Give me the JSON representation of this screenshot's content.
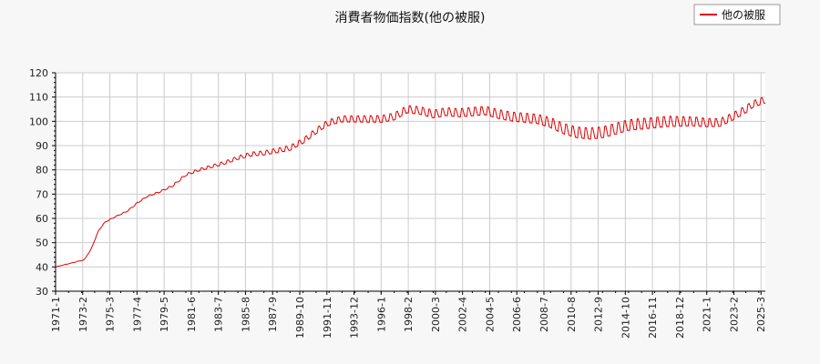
{
  "chart_data": {
    "type": "line",
    "title": "消費者物価指数(他の被服)",
    "xlabel": "",
    "ylabel": "",
    "ylim": [
      30,
      120
    ],
    "yticks": [
      30,
      40,
      50,
      60,
      70,
      80,
      90,
      100,
      110,
      120
    ],
    "grid": true,
    "legend_position": "top-right",
    "x_start": "1971-1",
    "x_end": "2025-7",
    "xticks": [
      "1971-1",
      "1973-2",
      "1975-3",
      "1977-4",
      "1979-5",
      "1981-6",
      "1983-7",
      "1985-8",
      "1987-9",
      "1989-10",
      "1991-11",
      "1993-12",
      "1996-1",
      "1998-2",
      "2000-3",
      "2002-4",
      "2004-5",
      "2006-6",
      "2008-7",
      "2010-8",
      "2012-9",
      "2014-10",
      "2016-11",
      "2018-12",
      "2021-1",
      "2023-2",
      "2025-3"
    ],
    "series": [
      {
        "name": "他の被服",
        "color": "#e00000",
        "seasonal_amplitude": [
          [
            1971,
            0
          ],
          [
            1979,
            0.3
          ],
          [
            1985,
            0.8
          ],
          [
            1990,
            1.2
          ],
          [
            1996,
            1.6
          ],
          [
            2004,
            2
          ],
          [
            2008,
            2.2
          ],
          [
            2012,
            2.6
          ],
          [
            2018,
            2.4
          ],
          [
            2022,
            1.8
          ],
          [
            2025.6,
            1.5
          ]
        ],
        "trend": [
          [
            1971.0,
            40.0
          ],
          [
            1972.5,
            42.0
          ],
          [
            1973.2,
            43.0
          ],
          [
            1973.7,
            47.0
          ],
          [
            1974.3,
            55.0
          ],
          [
            1974.8,
            58.5
          ],
          [
            1975.5,
            60.5
          ],
          [
            1976.5,
            63.0
          ],
          [
            1977.3,
            66.5
          ],
          [
            1978.0,
            69.0
          ],
          [
            1979.0,
            71.0
          ],
          [
            1980.0,
            73.5
          ],
          [
            1981.0,
            78.0
          ],
          [
            1982.0,
            80.0
          ],
          [
            1983.0,
            81.5
          ],
          [
            1984.0,
            83.0
          ],
          [
            1985.0,
            85.0
          ],
          [
            1986.0,
            86.5
          ],
          [
            1987.0,
            87.0
          ],
          [
            1988.0,
            88.0
          ],
          [
            1989.0,
            89.0
          ],
          [
            1990.0,
            92.0
          ],
          [
            1991.0,
            96.0
          ],
          [
            1991.5,
            98.0
          ],
          [
            1992.0,
            99.5
          ],
          [
            1993.0,
            101.0
          ],
          [
            1994.0,
            101.0
          ],
          [
            1995.0,
            101.0
          ],
          [
            1996.0,
            101.0
          ],
          [
            1997.0,
            102.0
          ],
          [
            1998.0,
            105.0
          ],
          [
            1999.0,
            104.5
          ],
          [
            2000.0,
            103.0
          ],
          [
            2001.0,
            104.0
          ],
          [
            2002.0,
            103.5
          ],
          [
            2003.0,
            104.0
          ],
          [
            2004.0,
            104.5
          ],
          [
            2005.0,
            103.0
          ],
          [
            2006.0,
            102.0
          ],
          [
            2007.0,
            101.5
          ],
          [
            2008.0,
            101.0
          ],
          [
            2009.0,
            99.5
          ],
          [
            2010.0,
            97.0
          ],
          [
            2011.0,
            95.5
          ],
          [
            2012.0,
            95.0
          ],
          [
            2013.0,
            95.5
          ],
          [
            2014.0,
            97.0
          ],
          [
            2015.0,
            98.5
          ],
          [
            2016.0,
            99.0
          ],
          [
            2017.0,
            99.5
          ],
          [
            2018.0,
            100.0
          ],
          [
            2019.0,
            100.0
          ],
          [
            2020.0,
            100.0
          ],
          [
            2021.0,
            99.5
          ],
          [
            2022.0,
            99.5
          ],
          [
            2023.0,
            102.0
          ],
          [
            2024.0,
            105.0
          ],
          [
            2024.5,
            107.0
          ],
          [
            2025.0,
            108.0
          ],
          [
            2025.6,
            109.0
          ]
        ]
      }
    ]
  }
}
